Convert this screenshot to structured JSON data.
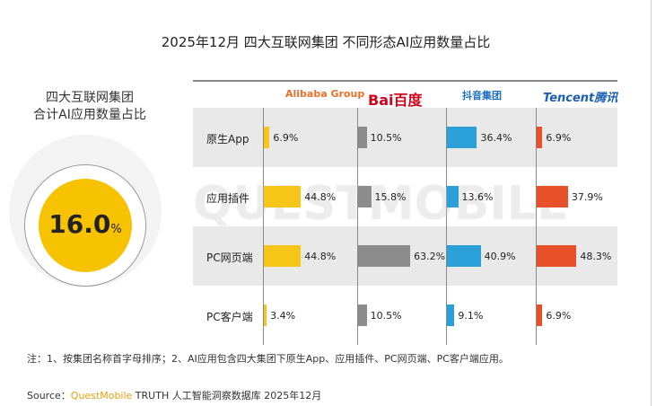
{
  "title": "2025年12月 四大互联网集团 不同形态AI应用数量占比",
  "summary": {
    "label_line1": "四大互联网集团",
    "label_line2": "合计AI应用数量占比",
    "value": "16.0",
    "unit": "%"
  },
  "watermark": "QUESTMOBILE",
  "note": "注：1、按集团名称首字母排序；2、AI应用包含四大集团下原生App、应用插件、PC网页端、PC客户端应用。",
  "source": {
    "prefix": "Source：",
    "brand": "QuestMobile",
    "rest": " TRUTH 人工智能洞察数据库 2025年12月"
  },
  "chart_data": {
    "type": "bar",
    "categories": [
      "原生App",
      "应用插件",
      "PC网页端",
      "PC客户端"
    ],
    "series": [
      {
        "name": "Alibaba Group",
        "color": "#f5c518",
        "values": [
          6.9,
          44.8,
          44.8,
          3.4
        ]
      },
      {
        "name": "Bai百度",
        "color": "#8c8c8c",
        "values": [
          10.5,
          15.8,
          63.2,
          10.5
        ]
      },
      {
        "name": "抖音集团",
        "color": "#2a9fd8",
        "values": [
          36.4,
          13.6,
          40.9,
          9.1
        ]
      },
      {
        "name": "Tencent腾讯",
        "color": "#e8502a",
        "values": [
          6.9,
          37.9,
          48.3,
          6.9
        ]
      }
    ],
    "unit": "%",
    "xlim": [
      0,
      100
    ]
  }
}
